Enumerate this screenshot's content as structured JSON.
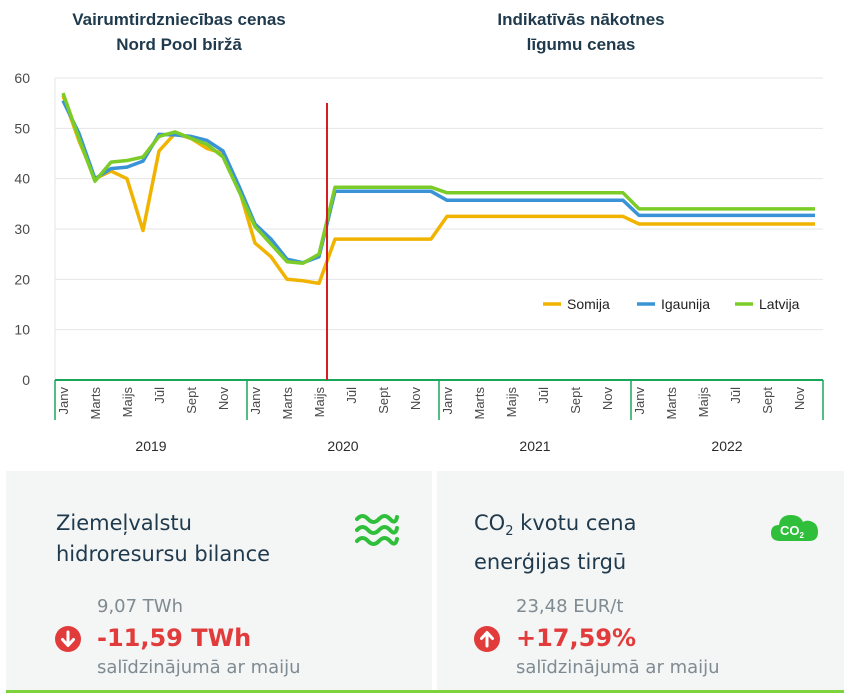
{
  "chart_data": {
    "type": "line",
    "header_left": [
      "Vairumtirdzniecības cenas",
      "Nord Pool biržā"
    ],
    "header_right": [
      "Indikatīvās nākotnes",
      "līgumu cenas"
    ],
    "ylim": [
      0,
      60
    ],
    "yticks": [
      "0",
      "10",
      "20",
      "30",
      "40",
      "50",
      "60"
    ],
    "x_month_labels": [
      "Janv",
      "Marts",
      "Maijs",
      "Jūl",
      "Sept",
      "Nov",
      "Janv",
      "Marts",
      "Maijs",
      "Jūl",
      "Sept",
      "Nov",
      "Janv",
      "Marts",
      "Maijs",
      "Jūl",
      "Sept",
      "Nov",
      "Janv",
      "Marts",
      "Maijs",
      "Jūl",
      "Sept",
      "Nov"
    ],
    "years": [
      "2019",
      "2020",
      "2021",
      "2022"
    ],
    "divider_month_index": 17,
    "series": [
      {
        "name": "Somija",
        "color": "#f0b400",
        "values": [
          56.5,
          47.5,
          40.0,
          41.5,
          40.0,
          29.7,
          45.5,
          49.0,
          48.0,
          46.0,
          45.0,
          38.0,
          27.2,
          24.5,
          20.0,
          19.7,
          19.2,
          28.0,
          28.0,
          28.0,
          28.0,
          28.0,
          28.0,
          28.0,
          32.5,
          32.5,
          32.5,
          32.5,
          32.5,
          32.5,
          32.5,
          32.5,
          32.5,
          32.5,
          32.5,
          32.5,
          31.0,
          31.0,
          31.0,
          31.0,
          31.0,
          31.0,
          31.0,
          31.0,
          31.0,
          31.0,
          31.0,
          31.0
        ]
      },
      {
        "name": "Igaunija",
        "color": "#3a93d6",
        "values": [
          55.5,
          49.0,
          40.0,
          42.0,
          42.3,
          43.5,
          48.8,
          48.7,
          48.4,
          47.6,
          45.5,
          38.5,
          31.0,
          28.0,
          24.0,
          23.3,
          24.5,
          37.5,
          37.5,
          37.5,
          37.5,
          37.5,
          37.5,
          37.5,
          35.7,
          35.7,
          35.7,
          35.7,
          35.7,
          35.7,
          35.7,
          35.7,
          35.7,
          35.7,
          35.7,
          35.7,
          32.7,
          32.7,
          32.7,
          32.7,
          32.7,
          32.7,
          32.7,
          32.7,
          32.7,
          32.7,
          32.7,
          32.7
        ]
      },
      {
        "name": "Latvija",
        "color": "#7ccc29",
        "values": [
          57.0,
          48.0,
          39.5,
          43.3,
          43.6,
          44.3,
          48.4,
          49.3,
          48.0,
          46.8,
          44.3,
          37.5,
          30.5,
          27.0,
          23.5,
          23.2,
          25.0,
          38.3,
          38.3,
          38.3,
          38.3,
          38.3,
          38.3,
          38.3,
          37.2,
          37.2,
          37.2,
          37.2,
          37.2,
          37.2,
          37.2,
          37.2,
          37.2,
          37.2,
          37.2,
          37.2,
          34.0,
          34.0,
          34.0,
          34.0,
          34.0,
          34.0,
          34.0,
          34.0,
          34.0,
          34.0,
          34.0,
          34.0
        ]
      }
    ]
  },
  "panels": {
    "hydro": {
      "title_line1": "Ziemeļvalstu",
      "title_line2": "hidroresursu bilance",
      "previous": "9,07 TWh",
      "delta": "-11,59 TWh",
      "comparison": "salīdzinājumā ar maiju",
      "icon": "water-waves-icon",
      "icon_color": "#2fbf3a",
      "arrow": "arrow-down-icon",
      "arrow_color": "#e23b3b"
    },
    "co2": {
      "title_co": "CO",
      "title_sub": "2",
      "title_rest": " kvotu cena",
      "title_line2": "enerģijas tirgū",
      "previous": "23,48 EUR/t",
      "delta": "+17,59%",
      "comparison": "salīdzinājumā ar maiju",
      "badge_co": "CO",
      "badge_sub": "2",
      "icon": "co2-cloud-icon",
      "icon_color": "#2fbf3a",
      "arrow": "arrow-up-icon",
      "arrow_color": "#e23b3b"
    }
  }
}
